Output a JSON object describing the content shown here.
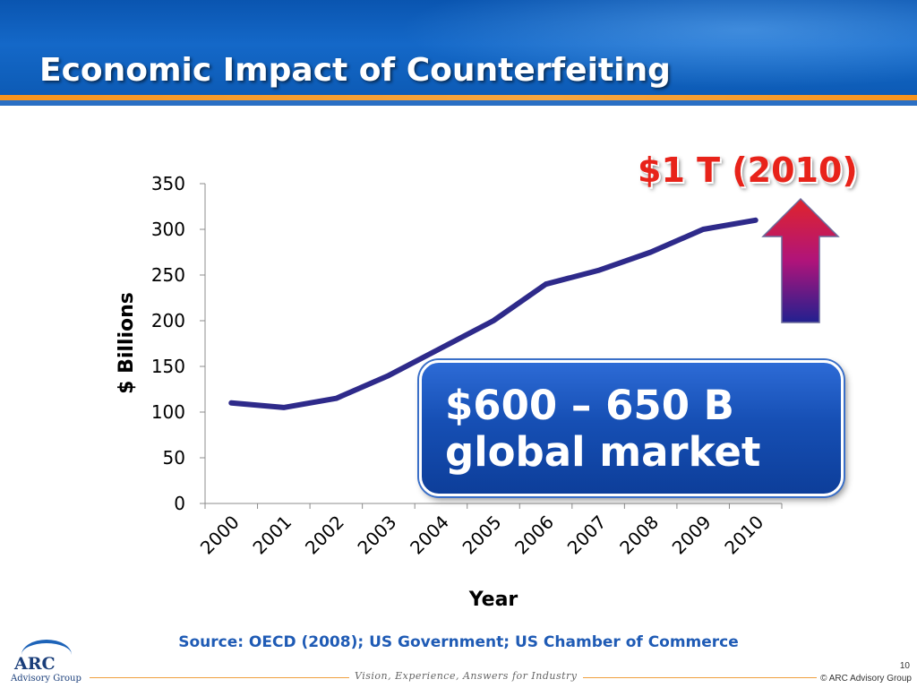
{
  "slide": {
    "title": "Economic Impact of Counterfeiting",
    "callout_line1": "$600 – 650 B",
    "callout_line2": "global market",
    "trillion_label": "$1 T (2010)",
    "source": "Source: OECD (2008); US Government;  US Chamber of Commerce",
    "page_number": "10",
    "tagline": "Vision, Experience, Answers for Industry",
    "copyright": "© ARC Advisory Group",
    "logo_main": "ARC",
    "logo_sub": "Advisory Group"
  },
  "colors": {
    "header_blue": "#1468c8",
    "accent_orange": "#f7941d",
    "line_color": "#2e2a8a",
    "trillion_red": "#e8231a",
    "source_blue": "#1f5bb5",
    "arrow_top": "#e0242b",
    "arrow_bottom": "#22208f"
  },
  "chart_data": {
    "type": "line",
    "title": "",
    "xlabel": "Year",
    "ylabel": "$ Billions",
    "categories": [
      "2000",
      "2001",
      "2002",
      "2003",
      "2004",
      "2005",
      "2006",
      "2007",
      "2008",
      "2009",
      "2010"
    ],
    "series": [
      {
        "values": [
          110,
          105,
          115,
          140,
          170,
          200,
          240,
          255,
          275,
          300,
          310
        ]
      }
    ],
    "ylim": [
      0,
      350
    ],
    "yticks": [
      0,
      50,
      100,
      150,
      200,
      250,
      300,
      350
    ],
    "grid": false,
    "legend": "none"
  }
}
